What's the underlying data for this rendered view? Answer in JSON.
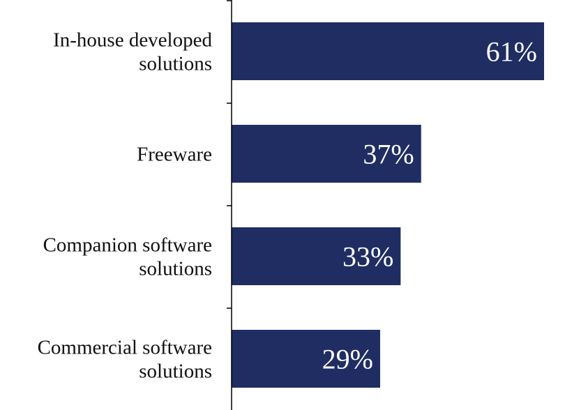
{
  "chart_data": {
    "type": "bar",
    "orientation": "horizontal",
    "categories": [
      [
        "In-house developed",
        "solutions"
      ],
      [
        "Freeware"
      ],
      [
        "Companion software",
        "solutions"
      ],
      [
        "Commercial software",
        "solutions"
      ]
    ],
    "values": [
      61,
      37,
      33,
      29
    ],
    "value_labels": [
      "61%",
      "37%",
      "33%",
      "29%"
    ],
    "xlim": [
      0,
      61
    ],
    "grid": false,
    "legend": "none",
    "bar_color": "#1f2d63"
  }
}
